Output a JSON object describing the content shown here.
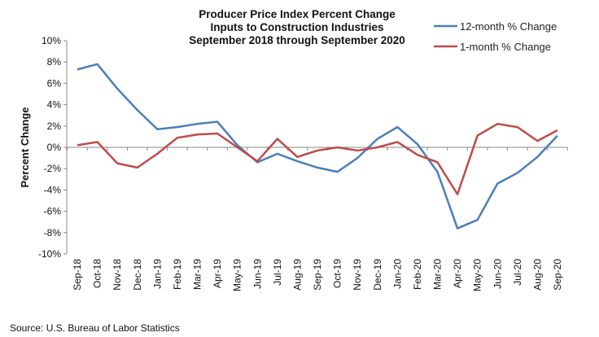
{
  "chart_data": {
    "type": "line",
    "title": [
      "Producer Price Index Percent Change",
      "Inputs to Construction Industries",
      "September 2018 through September 2020"
    ],
    "xlabel": "",
    "ylabel": "Percent Change",
    "ylim": [
      -10,
      10
    ],
    "yticks": [
      "10%",
      "8%",
      "6%",
      "4%",
      "2%",
      "0%",
      "-2%",
      "-4%",
      "-6%",
      "-8%",
      "-10%"
    ],
    "ytick_values": [
      10,
      8,
      6,
      4,
      2,
      0,
      -2,
      -4,
      -6,
      -8,
      -10
    ],
    "categories": [
      "Sep-18",
      "Oct-18",
      "Nov-18",
      "Dec-18",
      "Jan-19",
      "Feb-19",
      "Mar-19",
      "Apr-19",
      "May-19",
      "Jun-19",
      "Jul-19",
      "Aug-19",
      "Sep-19",
      "Oct-19",
      "Nov-19",
      "Dec-19",
      "Jan-20",
      "Feb-20",
      "Mar-20",
      "Apr-20",
      "May-20",
      "Jun-20",
      "Jul-20",
      "Aug-20",
      "Sep-20"
    ],
    "series": [
      {
        "name": "12-month % Change",
        "color": "#4a7ebb",
        "values": [
          7.3,
          7.8,
          5.5,
          3.5,
          1.7,
          1.9,
          2.2,
          2.4,
          0.2,
          -1.4,
          -0.6,
          -1.3,
          -1.9,
          -2.3,
          -1.0,
          0.8,
          1.9,
          0.3,
          -2.3,
          -7.6,
          -6.8,
          -3.4,
          -2.4,
          -0.9,
          1.1
        ]
      },
      {
        "name": "1-month % Change",
        "color": "#be4b48",
        "values": [
          0.2,
          0.5,
          -1.5,
          -1.9,
          -0.6,
          0.9,
          1.2,
          1.3,
          0.0,
          -1.3,
          0.8,
          -0.9,
          -0.3,
          0.0,
          -0.3,
          0.0,
          0.5,
          -0.7,
          -1.4,
          -4.4,
          1.1,
          2.2,
          1.9,
          0.6,
          1.6
        ]
      }
    ],
    "legend": "top-right",
    "grid": false
  },
  "source": "Source: U.S. Bureau of Labor Statistics"
}
